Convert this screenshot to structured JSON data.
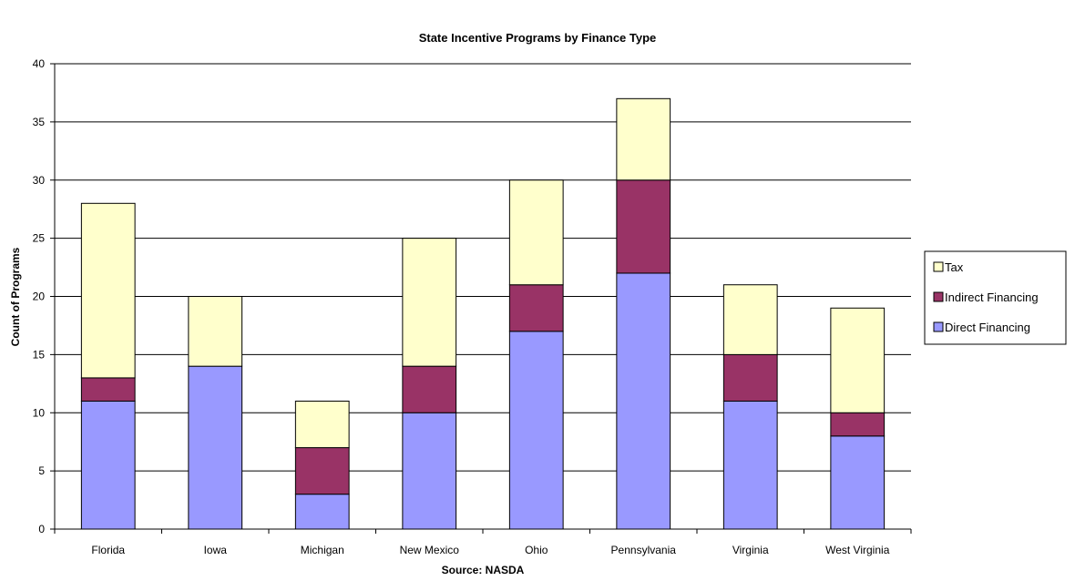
{
  "chart_data": {
    "type": "bar",
    "stacked": true,
    "title": "State Incentive Programs by Finance Type",
    "xlabel": "Source:  NASDA",
    "ylabel": "Count of Programs",
    "ylim": [
      0,
      40
    ],
    "ytick_step": 5,
    "grid": true,
    "legend_position": "right",
    "categories": [
      "Florida",
      "Iowa",
      "Michigan",
      "New Mexico",
      "Ohio",
      "Pennsylvania",
      "Virginia",
      "West Virginia"
    ],
    "series": [
      {
        "name": "Direct Financing",
        "color": "#9999ff",
        "values": [
          11,
          14,
          3,
          10,
          17,
          22,
          11,
          8
        ]
      },
      {
        "name": "Indirect Financing",
        "color": "#993366",
        "values": [
          2,
          0,
          4,
          4,
          4,
          8,
          4,
          2
        ]
      },
      {
        "name": "Tax",
        "color": "#ffffcc",
        "values": [
          15,
          6,
          4,
          11,
          9,
          7,
          6,
          9
        ]
      }
    ]
  }
}
